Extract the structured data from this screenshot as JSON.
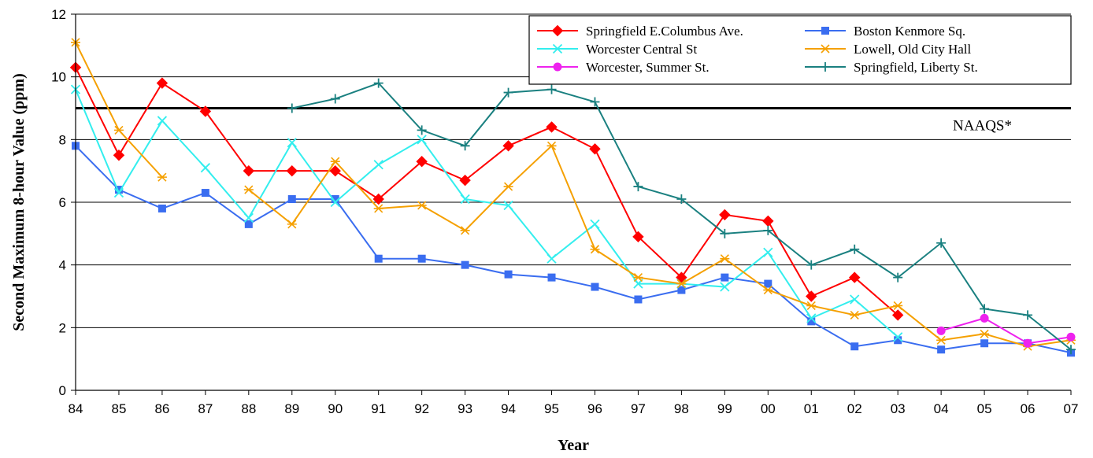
{
  "chart_data": {
    "type": "line",
    "xlabel": "Year",
    "ylabel": "Second Maximum 8-hour Value (ppm)",
    "ylim": [
      0,
      12
    ],
    "yticks": [
      0,
      2,
      4,
      6,
      8,
      10,
      12
    ],
    "grid": "horizontal",
    "legend_position": "top-right",
    "categories": [
      "84",
      "85",
      "86",
      "87",
      "88",
      "89",
      "90",
      "91",
      "92",
      "93",
      "94",
      "95",
      "96",
      "97",
      "98",
      "99",
      "00",
      "01",
      "02",
      "03",
      "04",
      "05",
      "06",
      "07"
    ],
    "reference_line": {
      "label": "NAAQS*",
      "value": 9,
      "color": "#000000"
    },
    "series": [
      {
        "name": "Springfield E.Columbus Ave.",
        "color": "#ff0000",
        "marker": "diamond",
        "values": [
          10.3,
          7.5,
          9.8,
          8.9,
          7.0,
          7.0,
          7.0,
          6.1,
          7.3,
          6.7,
          7.8,
          8.4,
          7.7,
          4.9,
          3.6,
          5.6,
          5.4,
          3.0,
          3.6,
          2.4,
          null,
          null,
          null,
          null
        ]
      },
      {
        "name": "Boston Kenmore Sq.",
        "color": "#3a6df0",
        "marker": "square",
        "values": [
          7.8,
          6.4,
          5.8,
          6.3,
          5.3,
          6.1,
          6.1,
          4.2,
          4.2,
          4.0,
          3.7,
          3.6,
          3.3,
          2.9,
          3.2,
          3.6,
          3.4,
          2.2,
          1.4,
          1.6,
          1.3,
          1.5,
          1.5,
          1.2
        ]
      },
      {
        "name": "Worcester Central St",
        "color": "#33eeee",
        "marker": "x",
        "values": [
          9.6,
          6.3,
          8.6,
          7.1,
          5.5,
          7.9,
          6.0,
          7.2,
          8.0,
          6.1,
          5.9,
          4.2,
          5.3,
          3.4,
          3.4,
          3.3,
          4.4,
          2.3,
          2.9,
          1.7,
          null,
          null,
          null,
          null
        ]
      },
      {
        "name": "Lowell, Old City Hall",
        "color": "#f5a000",
        "marker": "asterisk",
        "values": [
          11.1,
          8.3,
          6.8,
          null,
          6.4,
          5.3,
          7.3,
          5.8,
          5.9,
          5.1,
          6.5,
          7.8,
          4.5,
          3.6,
          3.4,
          4.2,
          3.2,
          2.7,
          2.4,
          2.7,
          1.6,
          1.8,
          1.4,
          1.6
        ]
      },
      {
        "name": "Worcester, Summer St.",
        "color": "#ee22ee",
        "marker": "circle",
        "values": [
          null,
          null,
          null,
          null,
          null,
          null,
          null,
          null,
          null,
          null,
          null,
          null,
          null,
          null,
          null,
          null,
          null,
          null,
          null,
          null,
          1.9,
          2.3,
          1.5,
          1.7
        ]
      },
      {
        "name": "Springfield, Liberty St.",
        "color": "#1a8080",
        "marker": "plus",
        "values": [
          null,
          null,
          null,
          null,
          null,
          9.0,
          9.3,
          9.8,
          8.3,
          7.8,
          9.5,
          9.6,
          9.2,
          6.5,
          6.1,
          5.0,
          5.1,
          4.0,
          4.5,
          3.6,
          4.7,
          2.6,
          2.4,
          1.3
        ]
      }
    ]
  }
}
